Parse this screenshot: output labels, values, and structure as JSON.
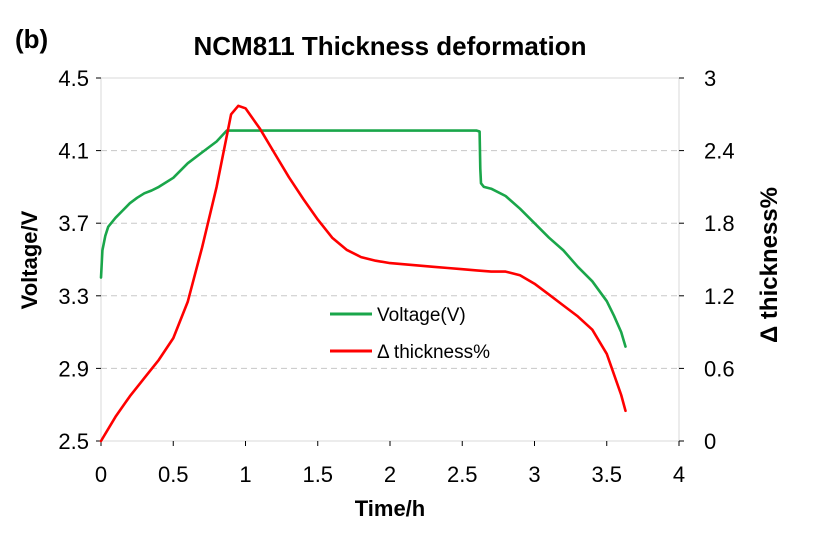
{
  "chart_data": {
    "type": "line",
    "panel_label": "(b)",
    "title": "NCM811 Thickness deformation",
    "xlabel": "Time/h",
    "ylabel": "Voltage/V",
    "y2label": "Δ thickness%",
    "xlim": [
      0,
      4
    ],
    "ylim": [
      2.5,
      4.5
    ],
    "y2lim": [
      0,
      3
    ],
    "xticks": [
      "0",
      "0.5",
      "1",
      "1.5",
      "2",
      "2.5",
      "3",
      "3.5",
      "4"
    ],
    "yticks": [
      "2.5",
      "2.9",
      "3.3",
      "3.7",
      "4.1",
      "4.5"
    ],
    "y2ticks": [
      "0",
      "0.6",
      "1.2",
      "1.8",
      "2.4",
      "3"
    ],
    "grid": "horizontal dashed",
    "legend_position": "center",
    "series": [
      {
        "name": "Voltage(V)",
        "axis": "left",
        "color": "#1aa64a",
        "x": [
          0,
          0.01,
          0.03,
          0.05,
          0.1,
          0.15,
          0.2,
          0.25,
          0.3,
          0.35,
          0.4,
          0.5,
          0.6,
          0.7,
          0.8,
          0.87,
          0.9,
          1.0,
          1.5,
          2.0,
          2.5,
          2.6,
          2.62,
          2.625,
          2.63,
          2.65,
          2.7,
          2.8,
          2.9,
          3.0,
          3.1,
          3.2,
          3.3,
          3.4,
          3.5,
          3.55,
          3.6,
          3.63
        ],
        "y": [
          3.4,
          3.55,
          3.63,
          3.68,
          3.73,
          3.77,
          3.81,
          3.84,
          3.865,
          3.88,
          3.9,
          3.95,
          4.03,
          4.09,
          4.15,
          4.21,
          4.21,
          4.21,
          4.21,
          4.21,
          4.21,
          4.21,
          4.205,
          4.0,
          3.92,
          3.9,
          3.89,
          3.85,
          3.78,
          3.7,
          3.62,
          3.55,
          3.46,
          3.38,
          3.27,
          3.19,
          3.1,
          3.02
        ]
      },
      {
        "name": "Δ thickness%",
        "axis": "right",
        "color": "#ff0000",
        "x": [
          0,
          0.1,
          0.2,
          0.3,
          0.4,
          0.5,
          0.6,
          0.7,
          0.8,
          0.9,
          0.95,
          1.0,
          1.1,
          1.2,
          1.3,
          1.4,
          1.5,
          1.6,
          1.7,
          1.8,
          1.9,
          2.0,
          2.1,
          2.2,
          2.3,
          2.4,
          2.5,
          2.6,
          2.7,
          2.8,
          2.9,
          3.0,
          3.1,
          3.2,
          3.3,
          3.4,
          3.5,
          3.6,
          3.63
        ],
        "y": [
          0,
          0.2,
          0.37,
          0.52,
          0.67,
          0.85,
          1.15,
          1.6,
          2.1,
          2.7,
          2.77,
          2.75,
          2.58,
          2.38,
          2.18,
          2.0,
          1.83,
          1.68,
          1.58,
          1.52,
          1.49,
          1.47,
          1.46,
          1.45,
          1.44,
          1.43,
          1.42,
          1.41,
          1.4,
          1.4,
          1.37,
          1.3,
          1.21,
          1.12,
          1.03,
          0.92,
          0.72,
          0.38,
          0.25
        ]
      }
    ]
  }
}
